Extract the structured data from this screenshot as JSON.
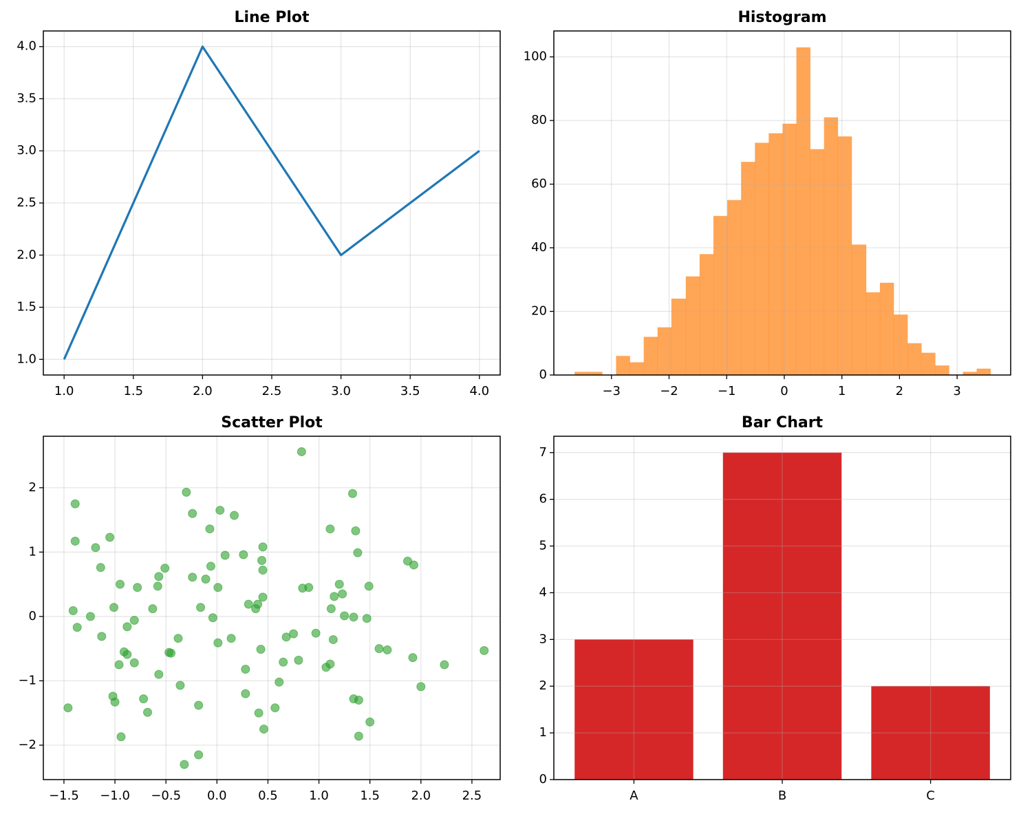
{
  "chart_data": [
    {
      "type": "line",
      "title": "Line Plot",
      "x": [
        1,
        2,
        3,
        4
      ],
      "values": [
        1,
        4,
        2,
        3
      ],
      "color": "#1f77b4",
      "xlim": [
        0.85,
        4.15
      ],
      "xticks": [
        {
          "value": 1,
          "label": "1.0"
        },
        1.5,
        {
          "value": 2,
          "label": "2.0"
        },
        2.5,
        {
          "value": 3,
          "label": "3.0"
        },
        3.5,
        {
          "value": 4,
          "label": "4.0"
        }
      ],
      "ylim": [
        0.85,
        4.15
      ],
      "yticks": [
        {
          "value": 1,
          "label": "1.0"
        },
        1.5,
        {
          "value": 2,
          "label": "2.0"
        },
        2.5,
        {
          "value": 3,
          "label": "3.0"
        },
        3.5,
        {
          "value": 4,
          "label": "4.0"
        }
      ],
      "grid": true
    },
    {
      "type": "histogram",
      "title": "Histogram",
      "color": "#ff7f0e",
      "alpha": 0.7,
      "bins": [
        -3.64,
        -3.4,
        -3.16,
        -2.92,
        -2.68,
        -2.44,
        -2.2,
        -1.96,
        -1.71,
        -1.47,
        -1.23,
        -0.99,
        -0.75,
        -0.51,
        -0.27,
        -0.03,
        0.21,
        0.45,
        0.69,
        0.93,
        1.17,
        1.42,
        1.66,
        1.9,
        2.14,
        2.38,
        2.62,
        2.86,
        3.1,
        3.34,
        3.58
      ],
      "values": [
        1,
        1,
        0,
        6,
        4,
        12,
        15,
        24,
        31,
        38,
        50,
        55,
        67,
        73,
        76,
        79,
        103,
        71,
        81,
        75,
        41,
        26,
        29,
        19,
        10,
        7,
        3,
        0,
        1,
        2
      ],
      "xlim": [
        -4.0,
        3.93
      ],
      "xticks": [
        {
          "value": -3,
          "label": "−3"
        },
        {
          "value": -2,
          "label": "−2"
        },
        {
          "value": -1,
          "label": "−1"
        },
        0,
        1,
        2,
        3
      ],
      "ylim": [
        0,
        108.15
      ],
      "yticks": [
        0,
        20,
        40,
        60,
        80,
        100
      ],
      "grid": true
    },
    {
      "type": "scatter",
      "title": "Scatter Plot",
      "color": "#2ca02c",
      "alpha": 0.6,
      "x": [
        -1.46,
        -1.41,
        -1.39,
        -1.39,
        -1.37,
        -1.24,
        -1.19,
        -1.14,
        -1.13,
        -1.05,
        -1.01,
        -1.02,
        -1.0,
        -0.95,
        -0.96,
        -0.94,
        -0.91,
        -0.88,
        -0.88,
        -0.81,
        -0.81,
        -0.78,
        -0.72,
        -0.68,
        -0.63,
        -0.58,
        -0.57,
        -0.57,
        -0.51,
        -0.47,
        -0.45,
        -0.38,
        -0.36,
        -0.32,
        -0.3,
        -0.24,
        -0.24,
        -0.18,
        -0.18,
        -0.16,
        -0.11,
        -0.07,
        -0.06,
        -0.04,
        0.01,
        0.01,
        0.03,
        0.08,
        0.14,
        0.17,
        0.26,
        0.28,
        0.28,
        0.31,
        0.38,
        0.4,
        0.41,
        0.43,
        0.44,
        0.45,
        0.45,
        0.45,
        0.46,
        0.57,
        0.61,
        0.65,
        0.68,
        0.75,
        0.8,
        0.83,
        0.84,
        0.9,
        0.97,
        1.07,
        1.11,
        1.11,
        1.12,
        1.14,
        1.15,
        1.2,
        1.23,
        1.25,
        1.33,
        1.34,
        1.34,
        1.36,
        1.38,
        1.39,
        1.39,
        1.47,
        1.49,
        1.5,
        1.59,
        1.67,
        1.87,
        1.92,
        1.93,
        2.0,
        2.23,
        2.62
      ],
      "values": [
        -1.42,
        0.09,
        1.75,
        1.17,
        -0.17,
        0.0,
        1.07,
        0.76,
        -0.31,
        1.23,
        0.14,
        -1.24,
        -1.33,
        0.5,
        -0.75,
        -1.87,
        -0.55,
        -0.59,
        -0.16,
        -0.06,
        -0.72,
        0.45,
        -1.28,
        -1.49,
        0.12,
        0.47,
        0.62,
        -0.9,
        0.75,
        -0.56,
        -0.57,
        -0.34,
        -1.07,
        -2.3,
        1.93,
        1.6,
        0.61,
        -1.38,
        -2.15,
        0.14,
        0.58,
        1.36,
        0.78,
        -0.02,
        0.45,
        -0.41,
        1.65,
        0.95,
        -0.34,
        1.57,
        0.96,
        -0.82,
        -1.2,
        0.19,
        0.12,
        0.19,
        -1.5,
        -0.51,
        0.87,
        1.08,
        0.72,
        0.3,
        -1.75,
        -1.42,
        -1.02,
        -0.71,
        -0.32,
        -0.27,
        -0.68,
        2.56,
        0.44,
        0.45,
        -0.26,
        -0.79,
        -0.74,
        1.36,
        0.12,
        -0.36,
        0.31,
        0.5,
        0.35,
        0.01,
        1.91,
        -0.01,
        -1.28,
        1.33,
        0.99,
        -1.3,
        -1.86,
        -0.03,
        0.47,
        -1.64,
        -0.5,
        -0.52,
        0.86,
        -0.64,
        0.8,
        -1.09,
        -0.75,
        -0.53
      ],
      "xlim": [
        -1.702,
        2.777
      ],
      "xticks": [
        {
          "value": -1.5,
          "label": "−1.5"
        },
        {
          "value": -1,
          "label": "−1.0"
        },
        {
          "value": -0.5,
          "label": "−0.5"
        },
        {
          "value": 0,
          "label": "0.0"
        },
        0.5,
        {
          "value": 1,
          "label": "1.0"
        },
        1.5,
        {
          "value": 2,
          "label": "2.0"
        },
        2.5
      ],
      "ylim": [
        -2.535,
        2.8
      ],
      "yticks": [
        {
          "value": -2,
          "label": "−2"
        },
        {
          "value": -1,
          "label": "−1"
        },
        0,
        1,
        2
      ],
      "grid": true
    },
    {
      "type": "bar",
      "title": "Bar Chart",
      "categories": [
        "A",
        "B",
        "C"
      ],
      "values": [
        3,
        7,
        2
      ],
      "color": "#d62728",
      "ylim": [
        0,
        7.35
      ],
      "yticks": [
        0,
        1,
        2,
        3,
        4,
        5,
        6,
        7
      ],
      "grid": true
    }
  ]
}
